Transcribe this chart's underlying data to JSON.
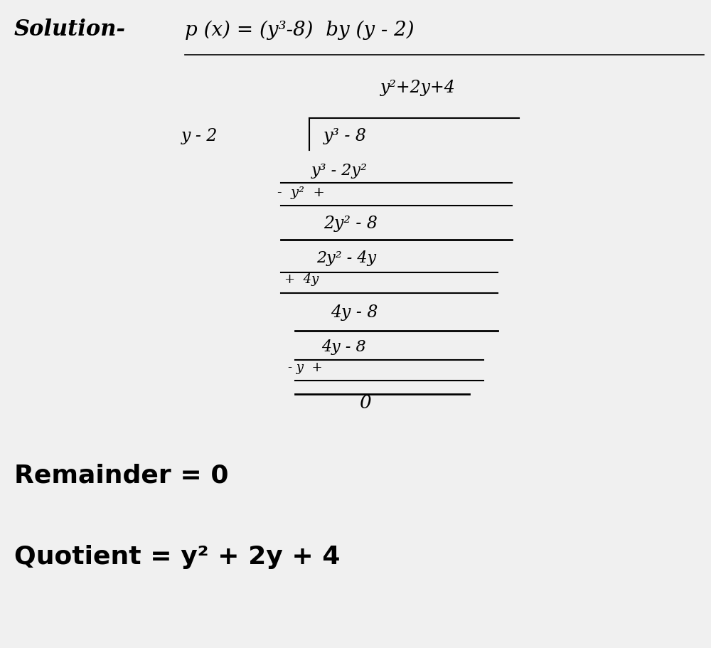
{
  "bg_color": "#f0f0f0",
  "solution_text": "Solution-",
  "header_eq": "p (x) = (y³-8)  by (y - 2)",
  "quotient_label": "Quotient = y² + 2y + 4",
  "remainder_label": "Remainder = 0"
}
